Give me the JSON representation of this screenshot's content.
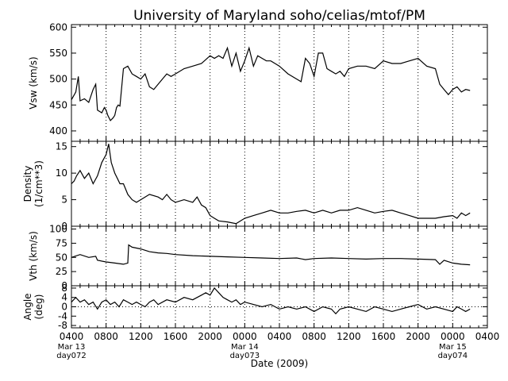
{
  "chart_data": {
    "type": "line",
    "title": "University of Maryland  soho/celias/mtof/PM",
    "xlabel": "Date (2009)",
    "x_axis": {
      "range_hours": [
        0,
        48
      ],
      "ticks": [
        {
          "hour": 0,
          "label": "0400",
          "sub1": "Mar 13",
          "sub2": "day072"
        },
        {
          "hour": 4,
          "label": "0800"
        },
        {
          "hour": 8,
          "label": "1200"
        },
        {
          "hour": 12,
          "label": "1600"
        },
        {
          "hour": 16,
          "label": "2000"
        },
        {
          "hour": 20,
          "label": "0000",
          "sub1": "Mar 14",
          "sub2": "day073"
        },
        {
          "hour": 24,
          "label": "0400"
        },
        {
          "hour": 28,
          "label": "0800"
        },
        {
          "hour": 32,
          "label": "1200"
        },
        {
          "hour": 36,
          "label": "1600"
        },
        {
          "hour": 40,
          "label": "2000"
        },
        {
          "hour": 44,
          "label": "0000",
          "sub1": "Mar 15",
          "sub2": "day074"
        },
        {
          "hour": 48,
          "label": "0400"
        }
      ]
    },
    "panels": [
      {
        "name": "vsw",
        "ylabel": [
          "Vsw (km/s)"
        ],
        "ylim": [
          380,
          605
        ],
        "ticks": [
          400,
          450,
          500,
          550,
          600
        ],
        "tick_labels": [
          "400",
          "450",
          "500",
          "550",
          "600"
        ],
        "zero_line": false,
        "x": [
          0,
          0.5,
          0.8,
          1,
          1.5,
          2,
          2.5,
          2.8,
          3,
          3.5,
          3.8,
          4,
          4.2,
          4.5,
          4.8,
          5,
          5.2,
          5.4,
          5.6,
          6,
          6.5,
          7,
          7.5,
          8,
          8.5,
          9,
          9.5,
          10,
          10.5,
          11,
          11.5,
          12,
          13,
          14,
          15,
          16,
          16.5,
          17,
          17.5,
          18,
          18.5,
          19,
          19.5,
          20,
          20.5,
          21,
          21.5,
          22,
          22.5,
          23,
          23.5,
          24,
          25,
          26,
          26.5,
          27,
          27.5,
          28,
          28.5,
          29,
          29.5,
          30,
          30.5,
          31,
          31.5,
          32,
          33,
          34,
          35,
          36,
          37,
          38,
          39,
          40,
          41,
          42,
          42.5,
          43,
          43.5,
          44,
          44.5,
          45,
          45.5,
          46
        ],
        "y": [
          460,
          475,
          505,
          458,
          462,
          455,
          480,
          490,
          440,
          435,
          445,
          440,
          430,
          420,
          425,
          430,
          445,
          450,
          448,
          520,
          525,
          510,
          505,
          500,
          510,
          485,
          480,
          490,
          500,
          510,
          505,
          510,
          520,
          525,
          530,
          545,
          540,
          545,
          540,
          560,
          525,
          550,
          515,
          535,
          560,
          525,
          545,
          540,
          535,
          535,
          530,
          525,
          510,
          500,
          495,
          540,
          530,
          505,
          550,
          550,
          520,
          515,
          510,
          515,
          505,
          520,
          525,
          525,
          520,
          535,
          530,
          530,
          535,
          540,
          525,
          520,
          490,
          480,
          470,
          480,
          485,
          475,
          480,
          478
        ]
      },
      {
        "name": "density",
        "ylabel": [
          "Density",
          "(1/cm**3)"
        ],
        "ylim": [
          0,
          16
        ],
        "ticks": [
          0,
          5,
          10,
          15
        ],
        "tick_labels": [
          "0",
          "5",
          "10",
          "15"
        ],
        "zero_line": false,
        "x": [
          0,
          0.3,
          0.6,
          1,
          1.5,
          2,
          2.5,
          3,
          3.5,
          4,
          4.3,
          4.6,
          5,
          5.3,
          5.6,
          6,
          6.5,
          7,
          7.5,
          8,
          9,
          10,
          10.5,
          11,
          11.5,
          12,
          13,
          14,
          14.5,
          15,
          15.5,
          16,
          16.5,
          17,
          18,
          19,
          20,
          21,
          22,
          23,
          24,
          25,
          26,
          27,
          28,
          29,
          30,
          31,
          32,
          33,
          34,
          35,
          36,
          37,
          38,
          39,
          40,
          41,
          42,
          43,
          44,
          44.5,
          45,
          45.5,
          46
        ],
        "y": [
          8,
          8.5,
          9.5,
          10.5,
          9,
          10,
          8,
          9.5,
          12,
          13.5,
          15.5,
          12,
          10,
          9,
          8,
          8,
          6,
          5,
          4.5,
          5,
          6,
          5.5,
          5,
          6,
          5,
          4.5,
          5,
          4.5,
          5.5,
          4,
          3.5,
          2,
          1.5,
          1,
          0.8,
          0.5,
          1.5,
          2,
          2.5,
          3,
          2.5,
          2.5,
          2.8,
          3,
          2.5,
          3,
          2.5,
          3,
          3,
          3.5,
          3,
          2.5,
          2.8,
          3,
          2.5,
          2,
          1.5,
          1.5,
          1.5,
          1.8,
          2,
          1.5,
          2.5,
          2,
          2.5
        ]
      },
      {
        "name": "vth",
        "ylabel": [
          "Vth (km/s)"
        ],
        "ylim": [
          0,
          105
        ],
        "ticks": [
          0,
          25,
          50,
          75,
          100
        ],
        "tick_labels": [
          "0",
          "25",
          "50",
          "75",
          "100"
        ],
        "zero_line": false,
        "x": [
          0,
          1,
          2,
          2.8,
          3,
          4,
          5,
          6,
          6.5,
          6.6,
          7,
          8,
          9,
          10,
          11,
          12,
          14,
          16,
          18,
          20,
          22,
          24,
          26,
          27,
          28,
          30,
          32,
          34,
          36,
          38,
          40,
          42,
          42.5,
          43,
          44,
          45,
          46
        ],
        "y": [
          50,
          55,
          50,
          52,
          45,
          42,
          40,
          38,
          40,
          72,
          68,
          65,
          60,
          58,
          57,
          55,
          53,
          52,
          51,
          50,
          49,
          48,
          49,
          46,
          48,
          49,
          48,
          47,
          48,
          48,
          47,
          46,
          38,
          45,
          40,
          38,
          37
        ]
      },
      {
        "name": "angle",
        "ylabel": [
          "Angle",
          "(deg)"
        ],
        "ylim": [
          -9,
          9
        ],
        "ticks": [
          -8,
          -4,
          0,
          4,
          8
        ],
        "tick_labels": [
          "-8",
          "-4",
          "0",
          "4",
          "8"
        ],
        "zero_line": true,
        "x": [
          0,
          0.5,
          1,
          1.5,
          2,
          2.5,
          3,
          3.5,
          4,
          4.5,
          5,
          5.5,
          6,
          6.5,
          7,
          7.5,
          8,
          8.5,
          9,
          9.5,
          10,
          11,
          12,
          13,
          14,
          15,
          15.5,
          16,
          16.5,
          17,
          17.5,
          18,
          18.5,
          19,
          19.5,
          20,
          21,
          22,
          23,
          24,
          25,
          26,
          27,
          28,
          29,
          30,
          30.5,
          31,
          32,
          33,
          34,
          35,
          36,
          37,
          38,
          39,
          40,
          41,
          42,
          43,
          44,
          44.5,
          45,
          45.5,
          46
        ],
        "y": [
          2,
          4,
          2,
          3,
          1,
          2,
          -1,
          2,
          3,
          1,
          2,
          0,
          3,
          2,
          1,
          2,
          1,
          0,
          2,
          3,
          1,
          3,
          2,
          4,
          3,
          5,
          6,
          5,
          8,
          6,
          4,
          3,
          2,
          3,
          1,
          2,
          1,
          0,
          1,
          -1,
          0,
          -1,
          0,
          -2,
          0,
          -1,
          -3,
          -1,
          0,
          -1,
          -2,
          0,
          -1,
          -2,
          -1,
          0,
          1,
          -1,
          0,
          -1,
          -2,
          0,
          -1,
          -2,
          -1
        ]
      }
    ]
  }
}
